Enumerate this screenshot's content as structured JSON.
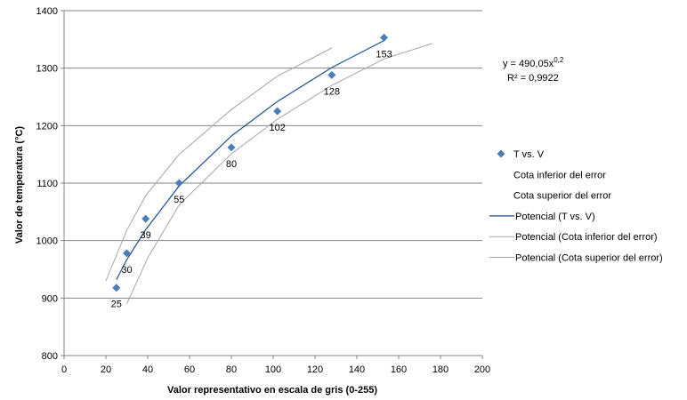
{
  "chart_data": {
    "type": "scatter",
    "xlabel": "Valor representativo en escala de gris (0-255)",
    "ylabel": "Valor de temperatura (°C)",
    "xlim": [
      0,
      200
    ],
    "ylim": [
      800,
      1400
    ],
    "xticks": [
      0,
      20,
      40,
      60,
      80,
      100,
      120,
      140,
      160,
      180,
      200
    ],
    "yticks": [
      800,
      900,
      1000,
      1100,
      1200,
      1300,
      1400
    ],
    "grid": "horizontal",
    "legend_position": "right",
    "colors": {
      "points": "#4a7ebb",
      "trend": "#1f4e96",
      "bounds": "#a6a6a6",
      "grid": "#868686"
    },
    "series": [
      {
        "name": "T vs. V",
        "kind": "points",
        "x": [
          25,
          30,
          39,
          55,
          80,
          102,
          128,
          153
        ],
        "y": [
          918,
          978,
          1038,
          1100,
          1162,
          1225,
          1288,
          1353
        ],
        "labels": [
          "25",
          "30",
          "39",
          "55",
          "80",
          "102",
          "128",
          "153"
        ]
      },
      {
        "name": "Cota inferior del error",
        "kind": "hidden"
      },
      {
        "name": "Cota superior del error",
        "kind": "hidden"
      },
      {
        "name": "Potencial (T vs. V)",
        "kind": "trend",
        "x": [
          25,
          30,
          39,
          55,
          80,
          102,
          128,
          153
        ],
        "y": [
          932,
          967,
          1019,
          1095,
          1182,
          1242,
          1301,
          1348
        ]
      },
      {
        "name": "Potencial (Cota inferior del error)",
        "kind": "bound",
        "x": [
          30,
          40,
          55,
          80,
          102,
          128,
          153,
          176
        ],
        "y": [
          890,
          970,
          1062,
          1151,
          1211,
          1270,
          1316,
          1343
        ]
      },
      {
        "name": "Potencial (Cota superior del error)",
        "kind": "bound",
        "x": [
          20,
          30,
          39,
          55,
          80,
          102,
          128
        ],
        "y": [
          930,
          1018,
          1078,
          1150,
          1228,
          1286,
          1335
        ]
      }
    ],
    "annotation": {
      "equation_base": "y = 490,05x",
      "equation_exp": "0,2",
      "r2": "R² = 0,9922"
    }
  }
}
